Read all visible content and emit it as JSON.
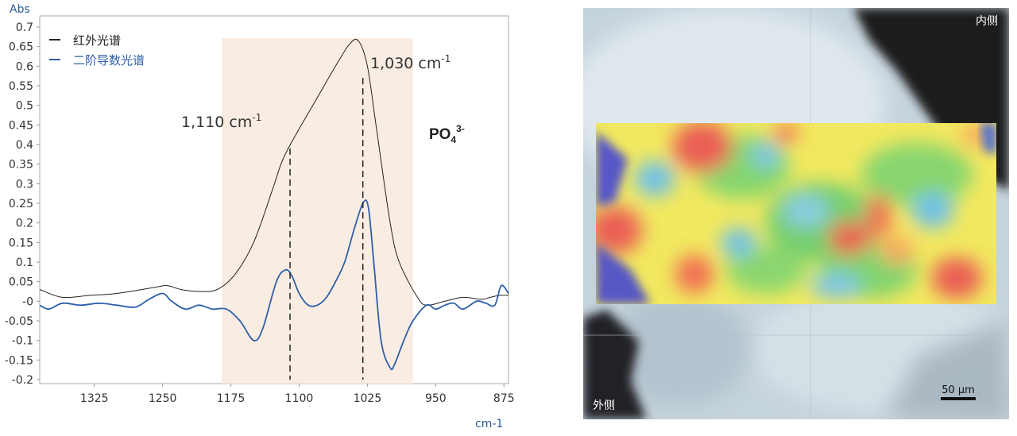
{
  "chart_data": {
    "type": "line",
    "ylabel": "Abs",
    "xlabel": "cm-1",
    "xlim": [
      1385,
      870
    ],
    "ylim": [
      -0.2,
      0.7
    ],
    "x_ticks": [
      1325,
      1250,
      1175,
      1100,
      1025,
      950,
      875
    ],
    "y_ticks": [
      "0.7",
      "0.65",
      "0.6",
      "0.55",
      "0.5",
      "0.45",
      "0.4",
      "0.35",
      "0.3",
      "0.25",
      "0.2",
      "0.15",
      "0.1",
      "0.05",
      "-0",
      "-0.05",
      "-0.1",
      "-0.15",
      "-0.2"
    ],
    "shaded_region": [
      1185,
      975
    ],
    "legend": [
      {
        "label": "红外光谱",
        "color": "#222222"
      },
      {
        "label": "二阶导数光谱",
        "color": "#2e5fa8"
      }
    ],
    "series": [
      {
        "name": "红外光谱",
        "color": "#222222",
        "x": [
          1385,
          1360,
          1330,
          1300,
          1260,
          1245,
          1230,
          1210,
          1190,
          1170,
          1150,
          1130,
          1120,
          1112,
          1100,
          1080,
          1060,
          1045,
          1035,
          1025,
          1015,
          1000,
          990,
          970,
          960,
          940,
          920,
          900,
          890,
          880,
          870
        ],
        "y": [
          0.03,
          0.01,
          0.015,
          0.02,
          0.035,
          0.04,
          0.03,
          0.025,
          0.03,
          0.07,
          0.15,
          0.28,
          0.35,
          0.39,
          0.44,
          0.52,
          0.6,
          0.655,
          0.665,
          0.6,
          0.44,
          0.2,
          0.1,
          0.01,
          -0.01,
          0.0,
          0.01,
          0.005,
          0.01,
          0.015,
          0.015
        ]
      },
      {
        "name": "二阶导数光谱",
        "color": "#2e5fa8",
        "x": [
          1385,
          1375,
          1360,
          1340,
          1320,
          1300,
          1280,
          1265,
          1250,
          1240,
          1225,
          1210,
          1195,
          1180,
          1165,
          1150,
          1140,
          1125,
          1115,
          1108,
          1100,
          1090,
          1080,
          1070,
          1060,
          1050,
          1040,
          1030,
          1024,
          1018,
          1010,
          1000,
          995,
          985,
          975,
          960,
          950,
          940,
          930,
          920,
          905,
          895,
          885,
          878,
          870
        ],
        "y": [
          -0.01,
          -0.02,
          -0.005,
          -0.01,
          -0.005,
          -0.01,
          -0.015,
          0.005,
          0.02,
          0.0,
          -0.02,
          -0.01,
          -0.02,
          -0.02,
          -0.05,
          -0.1,
          -0.07,
          0.05,
          0.08,
          0.065,
          0.02,
          -0.01,
          -0.01,
          0.01,
          0.05,
          0.1,
          0.18,
          0.25,
          0.24,
          0.1,
          -0.1,
          -0.17,
          -0.16,
          -0.1,
          -0.05,
          -0.01,
          -0.02,
          -0.01,
          -0.005,
          -0.02,
          0.0,
          -0.005,
          -0.01,
          0.04,
          0.02
        ]
      }
    ],
    "annotations": [
      {
        "x": 1110,
        "text": "1,110 cm",
        "sup": "-1",
        "line_top": 0.39
      },
      {
        "x": 1030,
        "text": "1,030 cm",
        "sup": "-1",
        "line_top": 0.57
      }
    ],
    "formula": {
      "base": "PO",
      "sub": "4",
      "sup": "3-"
    }
  },
  "image_panel": {
    "label_inner": "内侧",
    "label_outer": "外侧",
    "scale_bar": "50 μm"
  },
  "colors": {
    "ir": "#222222",
    "second_derivative": "#2e5fa8",
    "shade": "#f9ede3"
  }
}
